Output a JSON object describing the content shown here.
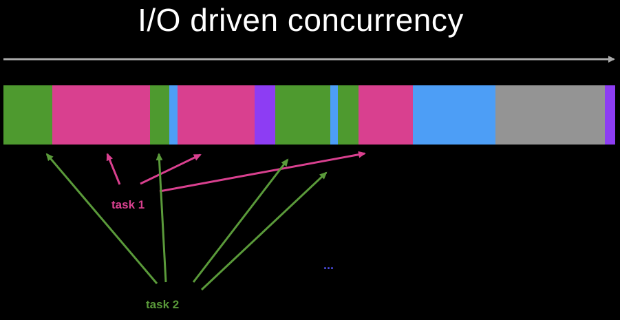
{
  "title": "I/O driven concurrency",
  "colors": {
    "background": "#000000",
    "timeline": "#a9a9a9",
    "green": "#4e9a2f",
    "pink": "#d9408f",
    "blue": "#4d9ef6",
    "purple": "#8d3df3",
    "gray": "#949494",
    "task1_text": "#d9408f",
    "task2_text": "#5a9a3a",
    "ellipsis": "#4a4ae0"
  },
  "segments": [
    {
      "color": "green"
    },
    {
      "color": "pink"
    },
    {
      "color": "green"
    },
    {
      "color": "blue"
    },
    {
      "color": "pink"
    },
    {
      "color": "purple"
    },
    {
      "color": "green"
    },
    {
      "color": "blue"
    },
    {
      "color": "green"
    },
    {
      "color": "pink"
    },
    {
      "color": "blue"
    },
    {
      "color": "gray"
    },
    {
      "color": "purple"
    }
  ],
  "labels": {
    "task1": "task 1",
    "task2": "task 2",
    "ellipsis": "..."
  }
}
